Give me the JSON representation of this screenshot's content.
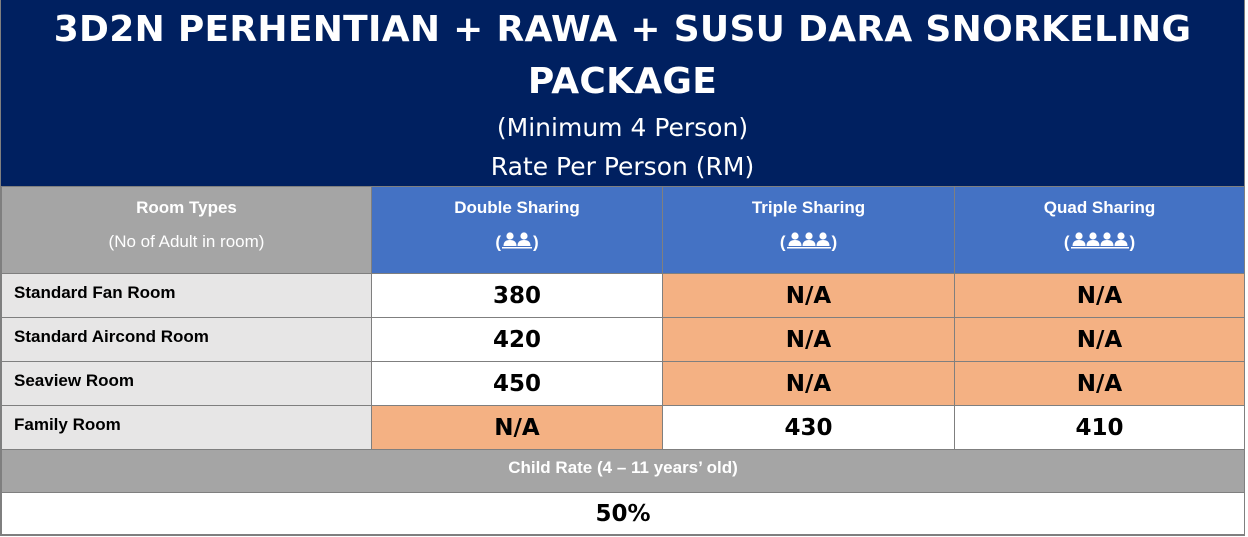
{
  "banner": {
    "title": "3D2N PERHENTIAN + RAWA + SUSU DARA SNORKELING PACKAGE",
    "minimum": "(Minimum 4 Person)",
    "rate": "Rate Per Person (RM)"
  },
  "header": {
    "room_types": "Room Types",
    "room_sub": "(No of Adult in room)",
    "columns": [
      {
        "label": "Double Sharing",
        "people": 2,
        "open": "(",
        "close": ")"
      },
      {
        "label": "Triple Sharing",
        "people": 3,
        "open": "(",
        "close": ")"
      },
      {
        "label": "Quad Sharing",
        "people": 4,
        "open": "(",
        "close": ")"
      }
    ]
  },
  "rows": [
    {
      "room": "Standard Fan Room",
      "values": [
        "380",
        "N/A",
        "N/A"
      ]
    },
    {
      "room": "Standard Aircond Room",
      "values": [
        "420",
        "N/A",
        "N/A"
      ]
    },
    {
      "room": "Seaview Room",
      "values": [
        "450",
        "N/A",
        "N/A"
      ]
    },
    {
      "room": "Family Room",
      "values": [
        "N/A",
        "430",
        "410"
      ]
    }
  ],
  "child": {
    "label": "Child Rate (4 – 11 years’ old)",
    "value": "50%"
  },
  "colors": {
    "banner": "#002060",
    "header_blue": "#4472c4",
    "header_gray": "#a5a5a5",
    "room_cell": "#e7e6e6",
    "na_cell": "#f4b183"
  }
}
